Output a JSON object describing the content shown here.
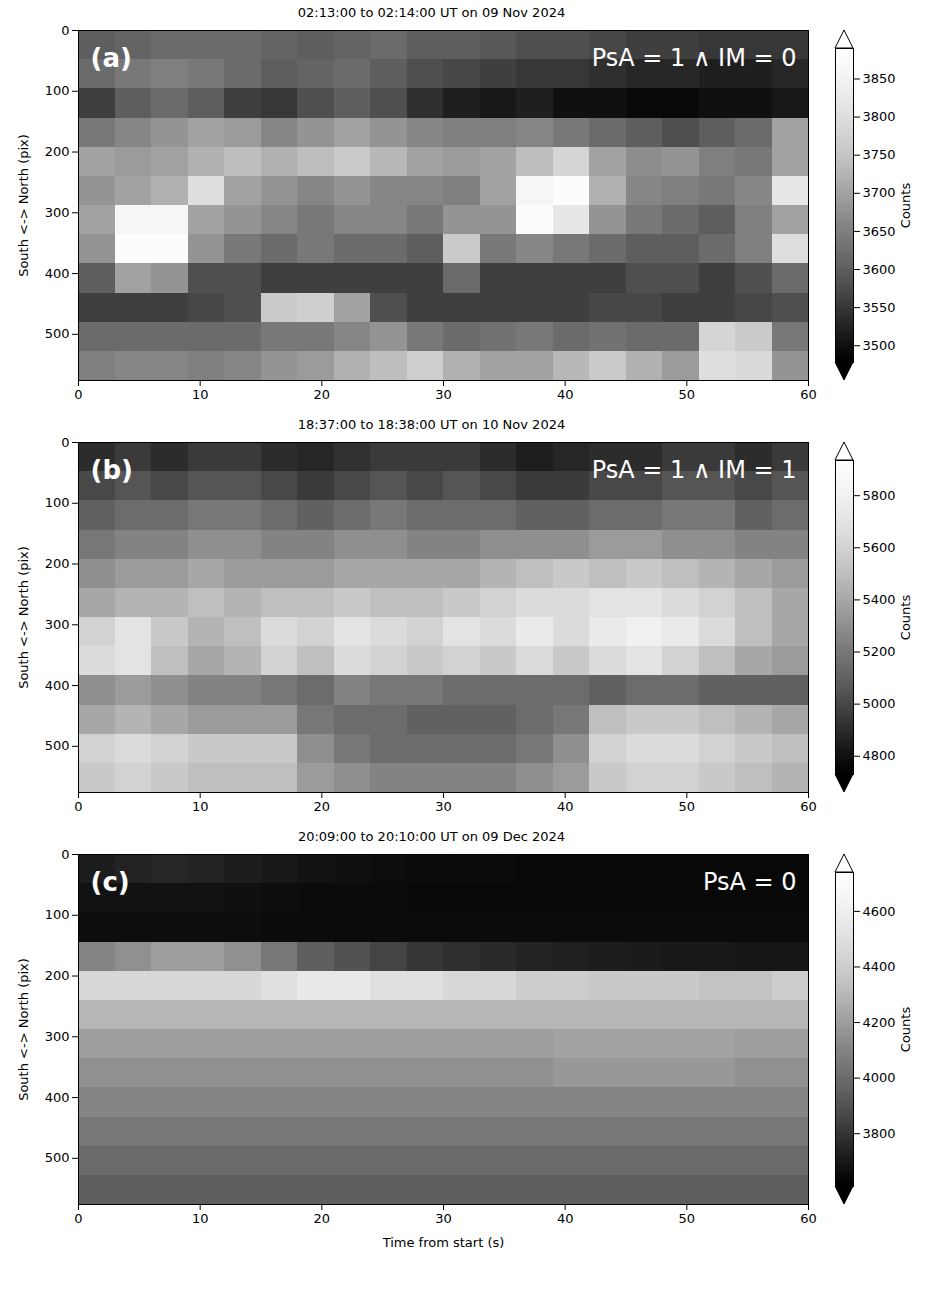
{
  "chart_data": [
    {
      "type": "heatmap",
      "title": "02:13:00 to 02:14:00 UT on 09 Nov 2024",
      "panel": "(a)",
      "annotation": "PsA = 1 ∧ IM = 0",
      "ylabel": "South <-> North (pix)",
      "xlim": [
        0,
        60
      ],
      "xticks": [
        0,
        10,
        20,
        30,
        40,
        50,
        60
      ],
      "ylim": [
        576,
        0
      ],
      "yticks": [
        0,
        100,
        200,
        300,
        400,
        500
      ],
      "color": "gray",
      "x_edges": [
        0,
        3,
        6,
        9,
        12,
        15,
        18,
        21,
        24,
        27,
        30,
        33,
        36,
        39,
        42,
        45,
        48,
        51,
        54,
        57,
        60
      ],
      "y_edges": [
        0,
        48,
        96,
        144,
        192,
        240,
        288,
        336,
        384,
        432,
        480,
        528,
        576
      ],
      "cells": [
        [
          3600,
          3610,
          3620,
          3620,
          3620,
          3610,
          3600,
          3610,
          3620,
          3600,
          3600,
          3590,
          3580,
          3580,
          3570,
          3560,
          3560,
          3550,
          3550,
          3550
        ],
        [
          3620,
          3640,
          3650,
          3640,
          3620,
          3600,
          3610,
          3620,
          3600,
          3580,
          3570,
          3560,
          3550,
          3550,
          3540,
          3530,
          3530,
          3520,
          3520,
          3530
        ],
        [
          3560,
          3600,
          3620,
          3600,
          3560,
          3550,
          3580,
          3600,
          3580,
          3540,
          3520,
          3510,
          3520,
          3500,
          3500,
          3490,
          3490,
          3500,
          3500,
          3510
        ],
        [
          3640,
          3660,
          3680,
          3700,
          3690,
          3660,
          3680,
          3700,
          3680,
          3660,
          3650,
          3650,
          3660,
          3640,
          3620,
          3600,
          3580,
          3600,
          3620,
          3700
        ],
        [
          3700,
          3690,
          3700,
          3720,
          3740,
          3720,
          3740,
          3760,
          3730,
          3700,
          3690,
          3700,
          3740,
          3780,
          3700,
          3670,
          3680,
          3650,
          3640,
          3700
        ],
        [
          3680,
          3700,
          3720,
          3800,
          3700,
          3680,
          3660,
          3680,
          3660,
          3660,
          3650,
          3700,
          3860,
          3880,
          3720,
          3660,
          3650,
          3640,
          3660,
          3820
        ],
        [
          3700,
          3860,
          3860,
          3700,
          3680,
          3660,
          3640,
          3660,
          3660,
          3640,
          3680,
          3680,
          3880,
          3820,
          3680,
          3640,
          3620,
          3600,
          3650,
          3700
        ],
        [
          3680,
          3880,
          3880,
          3680,
          3640,
          3620,
          3640,
          3620,
          3620,
          3600,
          3760,
          3640,
          3660,
          3640,
          3620,
          3600,
          3600,
          3620,
          3650,
          3800
        ],
        [
          3600,
          3700,
          3680,
          3580,
          3580,
          3560,
          3560,
          3560,
          3560,
          3560,
          3620,
          3560,
          3560,
          3560,
          3560,
          3580,
          3580,
          3560,
          3580,
          3620
        ],
        [
          3560,
          3560,
          3560,
          3570,
          3580,
          3760,
          3770,
          3700,
          3580,
          3560,
          3560,
          3560,
          3560,
          3560,
          3570,
          3570,
          3560,
          3560,
          3570,
          3580
        ],
        [
          3620,
          3620,
          3620,
          3620,
          3620,
          3640,
          3640,
          3660,
          3680,
          3640,
          3620,
          3630,
          3640,
          3620,
          3630,
          3620,
          3620,
          3780,
          3760,
          3640
        ],
        [
          3650,
          3660,
          3660,
          3650,
          3660,
          3680,
          3690,
          3720,
          3740,
          3770,
          3720,
          3700,
          3700,
          3730,
          3760,
          3720,
          3690,
          3800,
          3790,
          3680
        ]
      ],
      "colorbar": {
        "label": "Counts",
        "range": [
          3478,
          3890
        ],
        "ticks": [
          3500,
          3550,
          3600,
          3650,
          3700,
          3750,
          3800,
          3850
        ]
      }
    },
    {
      "type": "heatmap",
      "title": "18:37:00 to 18:38:00 UT on 10 Nov 2024",
      "panel": "(b)",
      "annotation": "PsA = 1 ∧ IM = 1",
      "ylabel": "South <-> North (pix)",
      "xlim": [
        0,
        60
      ],
      "xticks": [
        0,
        10,
        20,
        30,
        40,
        50,
        60
      ],
      "ylim": [
        576,
        0
      ],
      "yticks": [
        0,
        100,
        200,
        300,
        400,
        500
      ],
      "color": "gray",
      "x_edges": [
        0,
        3,
        6,
        9,
        12,
        15,
        18,
        21,
        24,
        27,
        30,
        33,
        36,
        39,
        42,
        45,
        48,
        51,
        54,
        57,
        60
      ],
      "y_edges": [
        0,
        48,
        96,
        144,
        192,
        240,
        288,
        336,
        384,
        432,
        480,
        528,
        576
      ],
      "cells": [
        [
          4900,
          4950,
          4900,
          4950,
          4950,
          4900,
          4880,
          4920,
          4950,
          4950,
          4950,
          4900,
          4850,
          4880,
          4900,
          4900,
          4950,
          4950,
          4900,
          4950
        ],
        [
          5000,
          5050,
          5000,
          5050,
          5050,
          5000,
          4950,
          5000,
          5050,
          5000,
          5050,
          5000,
          4950,
          4950,
          5000,
          5000,
          5050,
          5050,
          5000,
          5050
        ],
        [
          5100,
          5150,
          5150,
          5200,
          5200,
          5150,
          5100,
          5150,
          5200,
          5150,
          5150,
          5150,
          5100,
          5100,
          5150,
          5150,
          5200,
          5200,
          5100,
          5150
        ],
        [
          5200,
          5250,
          5250,
          5300,
          5300,
          5250,
          5250,
          5300,
          5300,
          5250,
          5250,
          5300,
          5300,
          5300,
          5350,
          5350,
          5300,
          5300,
          5250,
          5250
        ],
        [
          5300,
          5350,
          5350,
          5400,
          5350,
          5350,
          5350,
          5400,
          5400,
          5400,
          5400,
          5450,
          5500,
          5550,
          5500,
          5550,
          5500,
          5450,
          5400,
          5350
        ],
        [
          5400,
          5450,
          5450,
          5500,
          5450,
          5500,
          5500,
          5550,
          5500,
          5500,
          5550,
          5600,
          5650,
          5650,
          5700,
          5700,
          5650,
          5600,
          5500,
          5400
        ],
        [
          5600,
          5700,
          5550,
          5450,
          5500,
          5650,
          5600,
          5700,
          5650,
          5600,
          5700,
          5650,
          5750,
          5650,
          5750,
          5800,
          5750,
          5650,
          5500,
          5400
        ],
        [
          5650,
          5700,
          5500,
          5400,
          5450,
          5600,
          5500,
          5650,
          5600,
          5550,
          5600,
          5550,
          5650,
          5550,
          5650,
          5700,
          5600,
          5500,
          5400,
          5350
        ],
        [
          5300,
          5350,
          5300,
          5250,
          5250,
          5200,
          5150,
          5250,
          5200,
          5200,
          5150,
          5150,
          5150,
          5150,
          5100,
          5150,
          5150,
          5100,
          5100,
          5100
        ],
        [
          5400,
          5450,
          5400,
          5350,
          5350,
          5350,
          5200,
          5150,
          5150,
          5100,
          5100,
          5100,
          5150,
          5200,
          5500,
          5550,
          5550,
          5500,
          5450,
          5400
        ],
        [
          5600,
          5650,
          5600,
          5550,
          5550,
          5550,
          5300,
          5200,
          5150,
          5150,
          5150,
          5150,
          5200,
          5300,
          5600,
          5650,
          5650,
          5600,
          5550,
          5500
        ],
        [
          5550,
          5600,
          5550,
          5500,
          5500,
          5500,
          5350,
          5300,
          5250,
          5250,
          5250,
          5250,
          5300,
          5350,
          5550,
          5600,
          5600,
          5550,
          5500,
          5450
        ]
      ],
      "colorbar": {
        "label": "Counts",
        "range": [
          4730,
          5935
        ],
        "ticks": [
          4800,
          5000,
          5200,
          5400,
          5600,
          5800
        ]
      }
    },
    {
      "type": "heatmap",
      "title": "20:09:00 to 20:10:00 UT on 09 Dec 2024",
      "panel": "(c)",
      "annotation": "PsA = 0",
      "xlabel": "Time from start (s)",
      "ylabel": "South <-> North (pix)",
      "xlim": [
        0,
        60
      ],
      "xticks": [
        0,
        10,
        20,
        30,
        40,
        50,
        60
      ],
      "ylim": [
        576,
        0
      ],
      "yticks": [
        0,
        100,
        200,
        300,
        400,
        500
      ],
      "color": "gray",
      "x_edges": [
        0,
        3,
        6,
        9,
        12,
        15,
        18,
        21,
        24,
        27,
        30,
        33,
        36,
        39,
        42,
        45,
        48,
        51,
        54,
        57,
        60
      ],
      "y_edges": [
        0,
        48,
        96,
        144,
        192,
        240,
        288,
        336,
        384,
        432,
        480,
        528,
        576
      ],
      "cells": [
        [
          3720,
          3740,
          3750,
          3740,
          3720,
          3700,
          3680,
          3670,
          3660,
          3650,
          3650,
          3650,
          3640,
          3640,
          3640,
          3640,
          3640,
          3640,
          3640,
          3640
        ],
        [
          3680,
          3680,
          3680,
          3680,
          3670,
          3660,
          3650,
          3650,
          3650,
          3640,
          3640,
          3640,
          3640,
          3640,
          3640,
          3640,
          3640,
          3640,
          3640,
          3640
        ],
        [
          3660,
          3660,
          3660,
          3660,
          3660,
          3650,
          3650,
          3650,
          3650,
          3650,
          3650,
          3650,
          3650,
          3650,
          3650,
          3650,
          3650,
          3650,
          3650,
          3650
        ],
        [
          4100,
          4150,
          4200,
          4200,
          4150,
          4050,
          3950,
          3900,
          3850,
          3800,
          3780,
          3760,
          3740,
          3730,
          3720,
          3710,
          3700,
          3700,
          3690,
          3690
        ],
        [
          4450,
          4450,
          4450,
          4450,
          4450,
          4500,
          4550,
          4550,
          4500,
          4500,
          4450,
          4450,
          4400,
          4400,
          4380,
          4380,
          4380,
          4350,
          4350,
          4400
        ],
        [
          4300,
          4300,
          4300,
          4300,
          4300,
          4300,
          4300,
          4300,
          4300,
          4300,
          4300,
          4300,
          4300,
          4300,
          4300,
          4300,
          4300,
          4300,
          4300,
          4300
        ],
        [
          4200,
          4200,
          4200,
          4200,
          4200,
          4200,
          4200,
          4200,
          4200,
          4200,
          4200,
          4200,
          4200,
          4220,
          4220,
          4220,
          4220,
          4220,
          4200,
          4200
        ],
        [
          4150,
          4150,
          4150,
          4150,
          4150,
          4150,
          4150,
          4150,
          4150,
          4150,
          4150,
          4150,
          4150,
          4180,
          4180,
          4180,
          4180,
          4180,
          4150,
          4150
        ],
        [
          4100,
          4100,
          4100,
          4100,
          4100,
          4100,
          4100,
          4100,
          4100,
          4100,
          4100,
          4100,
          4100,
          4100,
          4100,
          4100,
          4100,
          4100,
          4100,
          4100
        ],
        [
          4050,
          4050,
          4050,
          4050,
          4050,
          4050,
          4050,
          4050,
          4050,
          4050,
          4050,
          4050,
          4050,
          4050,
          4050,
          4050,
          4050,
          4050,
          4050,
          4050
        ],
        [
          4000,
          4000,
          4000,
          4000,
          4000,
          4000,
          4000,
          4000,
          4000,
          4000,
          4000,
          4000,
          4000,
          4000,
          4000,
          4000,
          4000,
          4000,
          4000,
          4000
        ],
        [
          3950,
          3950,
          3950,
          3950,
          3950,
          3950,
          3950,
          3950,
          3950,
          3950,
          3950,
          3950,
          3950,
          3950,
          3950,
          3950,
          3950,
          3950,
          3950,
          3950
        ]
      ],
      "colorbar": {
        "label": "Counts",
        "range": [
          3610,
          4740
        ],
        "ticks": [
          3800,
          4000,
          4200,
          4400,
          4600
        ]
      }
    }
  ]
}
